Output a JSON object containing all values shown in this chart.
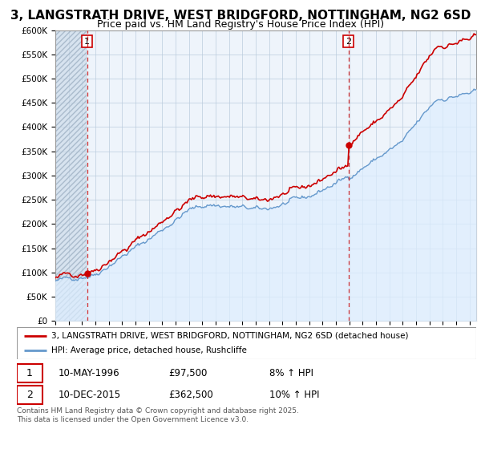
{
  "title": "3, LANGSTRATH DRIVE, WEST BRIDGFORD, NOTTINGHAM, NG2 6SD",
  "subtitle": "Price paid vs. HM Land Registry's House Price Index (HPI)",
  "xlim_start": 1994.0,
  "xlim_end": 2025.5,
  "ylim": [
    0,
    600000
  ],
  "yticks": [
    0,
    50000,
    100000,
    150000,
    200000,
    250000,
    300000,
    350000,
    400000,
    450000,
    500000,
    550000,
    600000
  ],
  "ytick_labels": [
    "£0",
    "£50K",
    "£100K",
    "£150K",
    "£200K",
    "£250K",
    "£300K",
    "£350K",
    "£400K",
    "£450K",
    "£500K",
    "£550K",
    "£600K"
  ],
  "sale1_date": 1996.37,
  "sale1_price": 97500,
  "sale2_date": 2015.94,
  "sale2_price": 362500,
  "legend_line1": "3, LANGSTRATH DRIVE, WEST BRIDGFORD, NOTTINGHAM, NG2 6SD (detached house)",
  "legend_line2": "HPI: Average price, detached house, Rushcliffe",
  "annotation1_date": "10-MAY-1996",
  "annotation1_price": "£97,500",
  "annotation1_hpi": "8% ↑ HPI",
  "annotation2_date": "10-DEC-2015",
  "annotation2_price": "£362,500",
  "annotation2_hpi": "10% ↑ HPI",
  "copyright_text": "Contains HM Land Registry data © Crown copyright and database right 2025.\nThis data is licensed under the Open Government Licence v3.0.",
  "red_color": "#cc0000",
  "blue_color": "#6699cc",
  "blue_fill": "#ddeeff",
  "plot_bg": "#eef4fb",
  "hatch_bg": "#dde8f0",
  "grid_color": "#bbccdd",
  "title_fontsize": 11,
  "subtitle_fontsize": 9,
  "hatch_end": 1996.37
}
